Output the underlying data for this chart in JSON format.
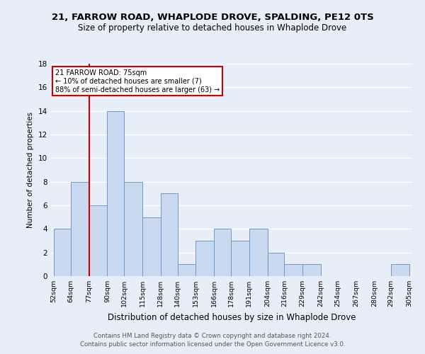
{
  "title": "21, FARROW ROAD, WHAPLODE DROVE, SPALDING, PE12 0TS",
  "subtitle": "Size of property relative to detached houses in Whaplode Drove",
  "xlabel": "Distribution of detached houses by size in Whaplode Drove",
  "ylabel": "Number of detached properties",
  "bin_edges": [
    52,
    64,
    77,
    90,
    102,
    115,
    128,
    140,
    153,
    166,
    178,
    191,
    204,
    216,
    229,
    242,
    254,
    267,
    280,
    292,
    305
  ],
  "bin_heights": [
    4,
    8,
    6,
    14,
    8,
    5,
    7,
    1,
    3,
    4,
    3,
    4,
    2,
    1,
    1,
    0,
    0,
    0,
    0,
    1
  ],
  "bar_color": "#c9d9f0",
  "bar_edge_color": "#7098c8",
  "vline_x": 77,
  "annotation_line1": "21 FARROW ROAD: 75sqm",
  "annotation_line2": "← 10% of detached houses are smaller (7)",
  "annotation_line3": "88% of semi-detached houses are larger (63) →",
  "annotation_box_color": "#ffffff",
  "annotation_box_edge": "#cc0000",
  "vline_color": "#cc0000",
  "ylim": [
    0,
    18
  ],
  "yticks": [
    0,
    2,
    4,
    6,
    8,
    10,
    12,
    14,
    16,
    18
  ],
  "footer1": "Contains HM Land Registry data © Crown copyright and database right 2024.",
  "footer2": "Contains public sector information licensed under the Open Government Licence v3.0.",
  "background_color": "#e8eef8",
  "grid_color": "#ffffff",
  "title_fontsize": 9.5,
  "subtitle_fontsize": 8.5
}
